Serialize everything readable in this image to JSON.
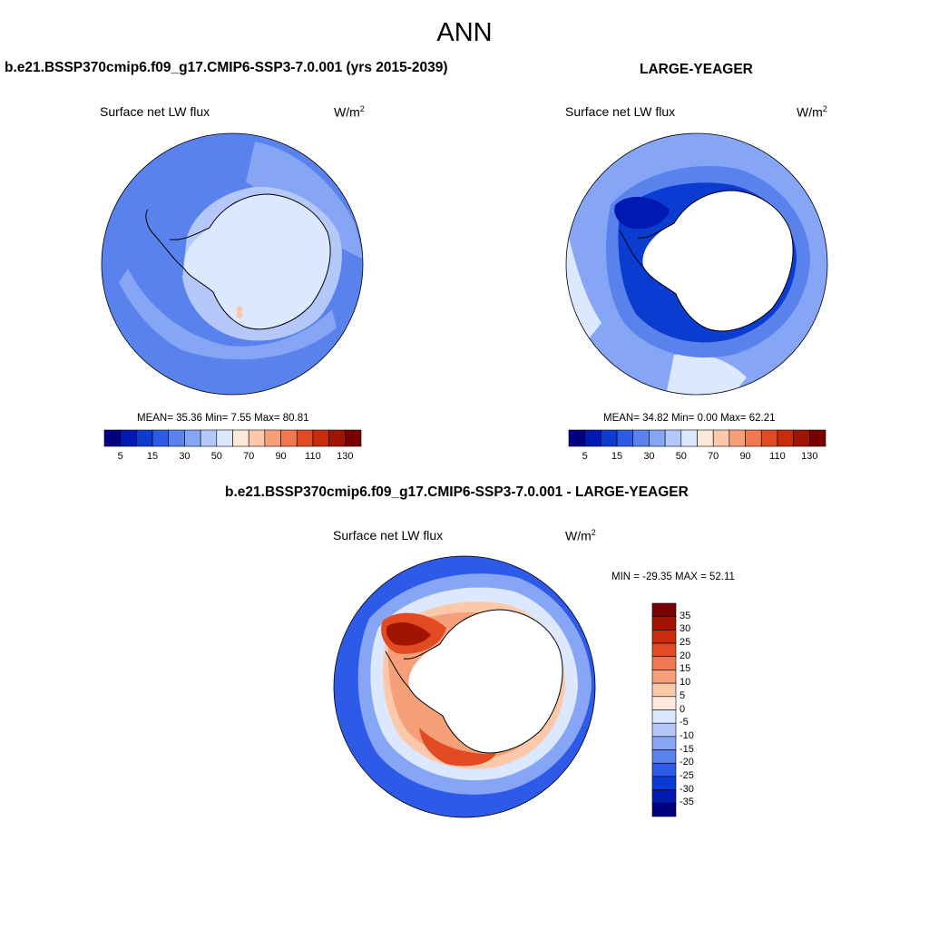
{
  "figure": {
    "title": "ANN",
    "panels": [
      {
        "title": "b.e21.BSSP370cmip6.f09_g17.CMIP6-SSP3-7.0.001 (yrs 2015-2039)",
        "variable": "Surface net LW flux",
        "units": "W/m",
        "units_sup": "2",
        "stats": "MEAN=  35.36  Min=   7.55  Max=  80.81"
      },
      {
        "title": "LARGE-YEAGER",
        "variable": "Surface net LW flux",
        "units": "W/m",
        "units_sup": "2",
        "stats": "MEAN=  34.82  Min=   0.00  Max=  62.21"
      },
      {
        "title": "b.e21.BSSP370cmip6.f09_g17.CMIP6-SSP3-7.0.001 - LARGE-YEAGER",
        "variable": "Surface net LW flux",
        "units": "W/m",
        "units_sup": "2",
        "stats": "MIN = -29.35 MAX =  52.11"
      }
    ],
    "colorbar_abs": {
      "colors": [
        "#000080",
        "#0019b4",
        "#0a3cd2",
        "#2d5ae6",
        "#5a82ed",
        "#87a5f5",
        "#b4c8fa",
        "#dce8ff",
        "#ffe8dc",
        "#fcc8aa",
        "#f5a078",
        "#f07850",
        "#e14a22",
        "#c82c0a",
        "#a01400",
        "#780000"
      ],
      "labels": [
        "5",
        "15",
        "30",
        "50",
        "70",
        "90",
        "110",
        "130"
      ]
    },
    "colorbar_diff": {
      "colors": [
        "#000080",
        "#0019b4",
        "#0a3cd2",
        "#2d5ae6",
        "#5a82ed",
        "#87a5f5",
        "#b4c8fa",
        "#dce8ff",
        "#ffe8dc",
        "#fcc8aa",
        "#f5a078",
        "#f07850",
        "#e14a22",
        "#c82c0a",
        "#a01400",
        "#780000"
      ],
      "labels": [
        "-35",
        "-30",
        "-25",
        "-20",
        "-15",
        "-10",
        "-5",
        "0",
        "5",
        "10",
        "15",
        "20",
        "25",
        "30",
        "35"
      ]
    },
    "map_colors": {
      "ocean_base": "#5a82ed",
      "ocean_light": "#87a5f5",
      "ice_light": "#b4c8fa",
      "ice_pale": "#dce8ff",
      "land_mask": "#ffffff",
      "deep_blue": "#0a3cd2",
      "darkest_blue": "#0019b4",
      "diff_blue": "#2d5ae6",
      "diff_red": "#e14a22",
      "diff_dark_red": "#a01400",
      "diff_orange": "#f5a078",
      "diff_peach": "#fcc8aa"
    }
  }
}
